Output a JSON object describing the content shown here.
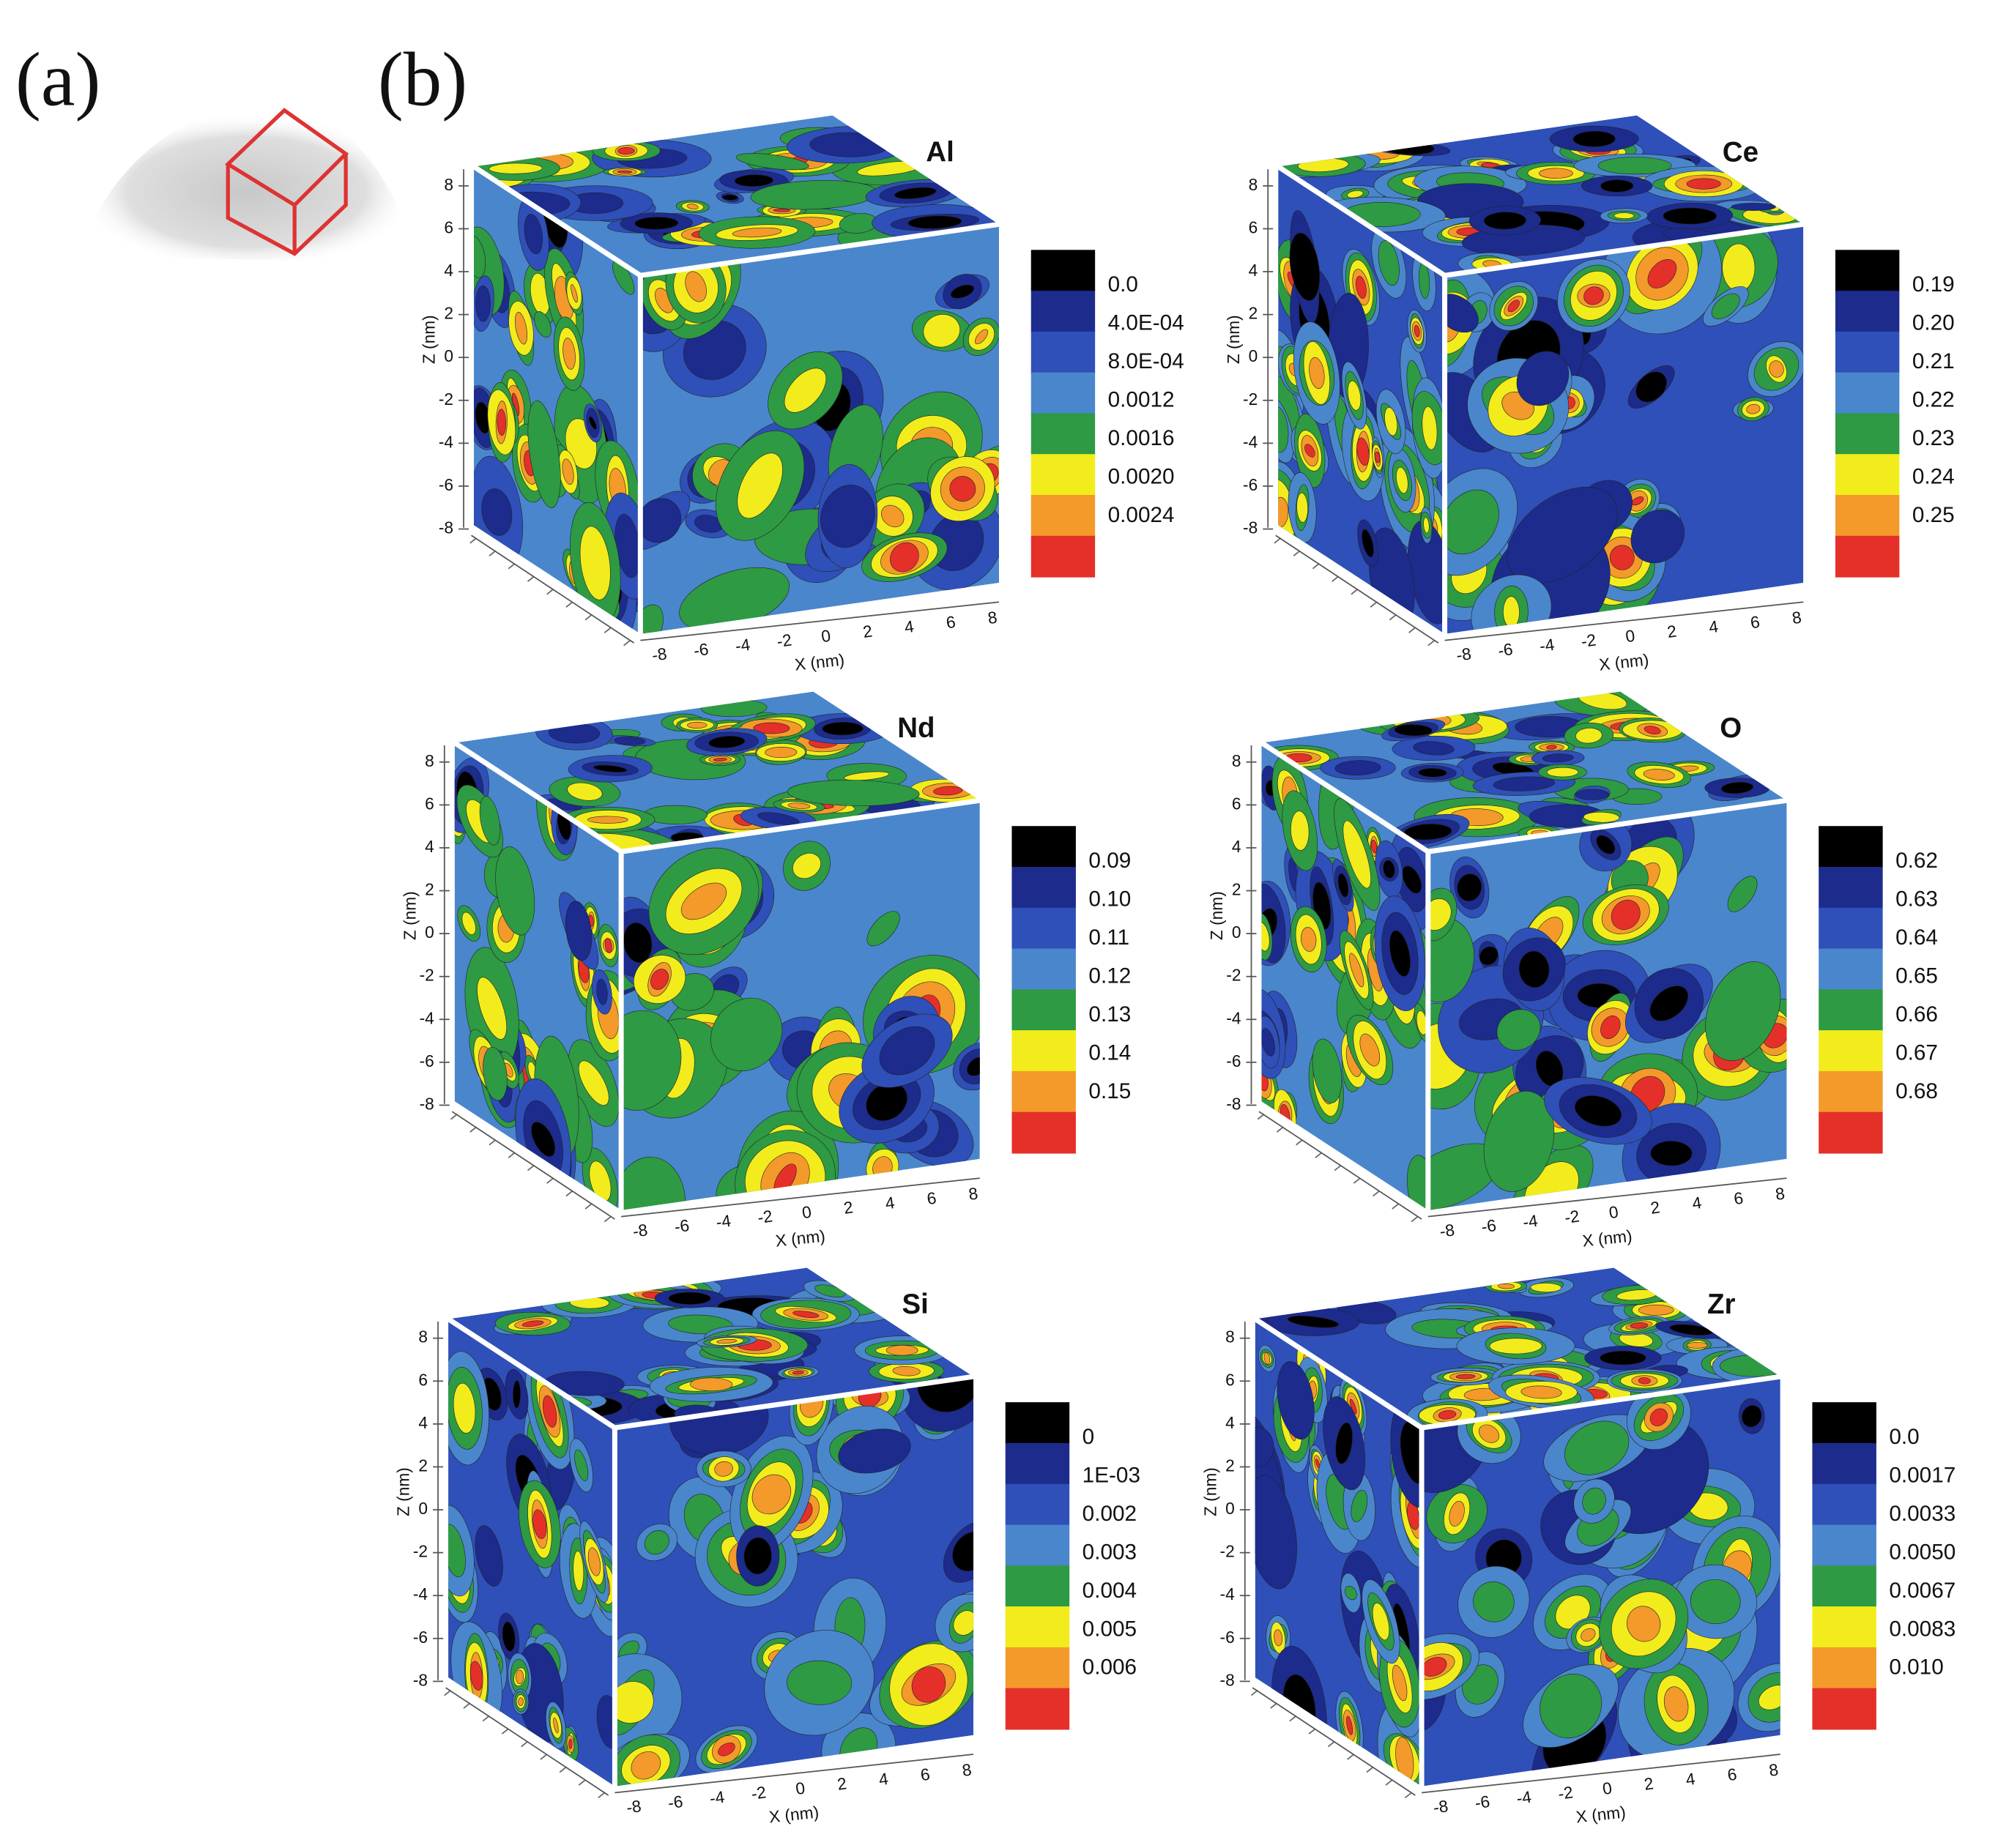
{
  "panels": {
    "a": "(a)",
    "b": "(b)"
  },
  "axes": {
    "z_label": "Z (nm)",
    "x_label": "X (nm)",
    "ticks": [
      "8",
      "6",
      "4",
      "2",
      "0",
      "-2",
      "-4",
      "-6",
      "-8"
    ]
  },
  "cubes": [
    {
      "element": "Al",
      "colorbar": [
        "0.0",
        "4.0E-04",
        "8.0E-04",
        "0.0012",
        "0.0016",
        "0.0020",
        "0.0024"
      ]
    },
    {
      "element": "Ce",
      "colorbar": [
        "0.19",
        "0.20",
        "0.21",
        "0.22",
        "0.23",
        "0.24",
        "0.25"
      ]
    },
    {
      "element": "Nd",
      "colorbar": [
        "0.09",
        "0.10",
        "0.11",
        "0.12",
        "0.13",
        "0.14",
        "0.15"
      ]
    },
    {
      "element": "O",
      "colorbar": [
        "0.62",
        "0.63",
        "0.64",
        "0.65",
        "0.66",
        "0.67",
        "0.68"
      ]
    },
    {
      "element": "Si",
      "colorbar": [
        "0",
        "1E-03",
        "0.002",
        "0.003",
        "0.004",
        "0.005",
        "0.006"
      ]
    },
    {
      "element": "Zr",
      "colorbar": [
        "0.0",
        "0.0017",
        "0.0033",
        "0.0050",
        "0.0067",
        "0.0083",
        "0.010"
      ]
    }
  ]
}
